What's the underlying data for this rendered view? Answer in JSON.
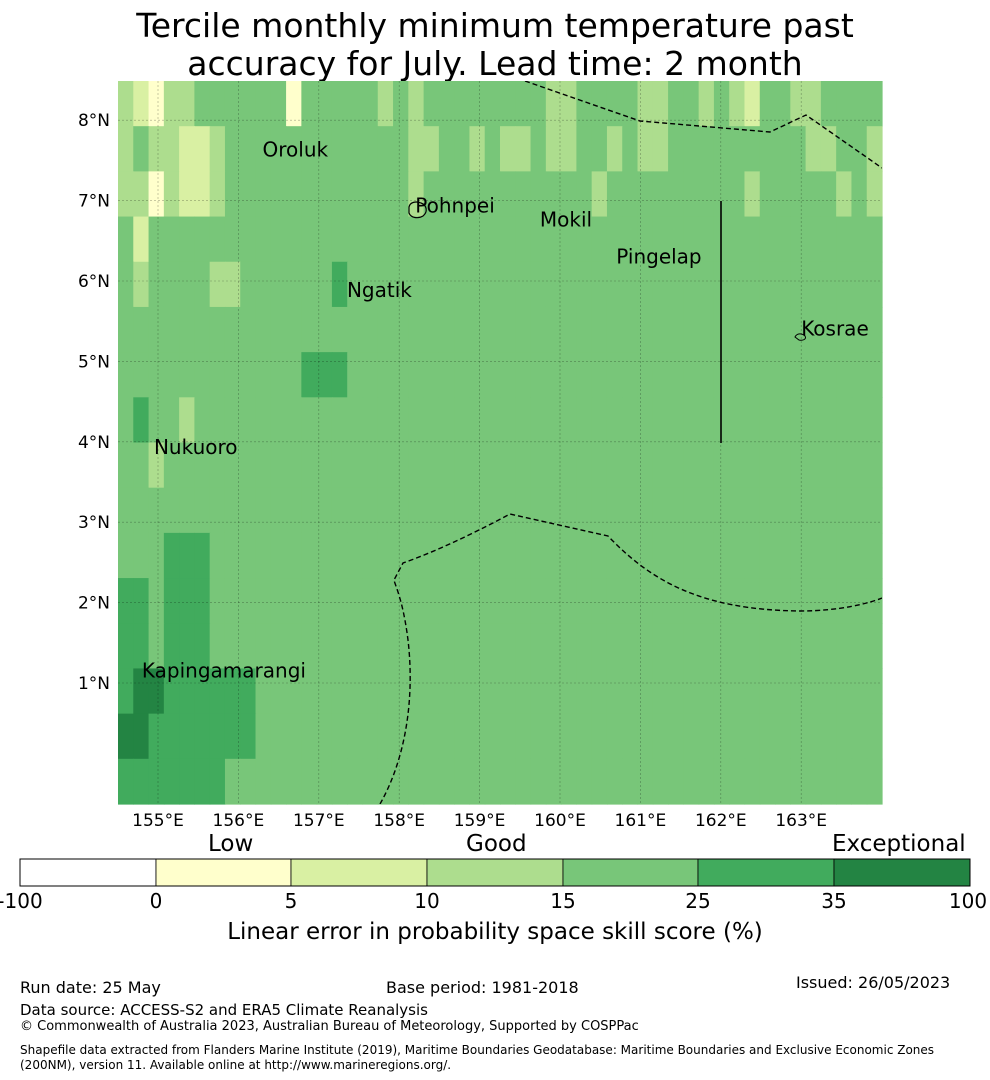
{
  "title": {
    "line1": "Tercile monthly minimum temperature past",
    "line2": "accuracy for July. Lead time: 2 month"
  },
  "map": {
    "lon_min": 154.5,
    "lon_max": 164.0,
    "lat_min": -0.3,
    "lat_max": 8.5,
    "cell_size_deg": 0.5556,
    "lon_ticks": [
      "155°E",
      "156°E",
      "157°E",
      "158°E",
      "159°E",
      "160°E",
      "161°E",
      "162°E",
      "163°E"
    ],
    "lat_ticks": [
      "1°N",
      "2°N",
      "3°N",
      "4°N",
      "5°N",
      "6°N",
      "7°N",
      "8°N"
    ],
    "places": [
      {
        "name": "Oroluk",
        "lon": 156.3,
        "lat": 7.55
      },
      {
        "name": "Pohnpei",
        "lon": 158.2,
        "lat": 6.85
      },
      {
        "name": "Mokil",
        "lon": 159.75,
        "lat": 6.68
      },
      {
        "name": "Pingelap",
        "lon": 160.7,
        "lat": 6.22
      },
      {
        "name": "Ngatik",
        "lon": 157.35,
        "lat": 5.8
      },
      {
        "name": "Kosrae",
        "lon": 163.0,
        "lat": 5.32
      },
      {
        "name": "Nukuoro",
        "lon": 154.95,
        "lat": 3.85
      },
      {
        "name": "Kapingamarangi",
        "lon": 154.8,
        "lat": 1.07
      }
    ],
    "grid_skill_category": [
      [
        3,
        2,
        1,
        3,
        3,
        4,
        4,
        4,
        4,
        4,
        4,
        1,
        4,
        4,
        4,
        4,
        4,
        3,
        4,
        3,
        4,
        4,
        4,
        4,
        4,
        4,
        4,
        4,
        3,
        3,
        4,
        4,
        4,
        4,
        3,
        3,
        4,
        4,
        3,
        4,
        3,
        2,
        4,
        4,
        3,
        3,
        4,
        4,
        4,
        4
      ],
      [
        3,
        4,
        3,
        3,
        2,
        2,
        3,
        4,
        4,
        4,
        4,
        4,
        4,
        4,
        4,
        4,
        4,
        4,
        4,
        3,
        3,
        4,
        4,
        3,
        4,
        3,
        3,
        4,
        3,
        3,
        4,
        4,
        3,
        4,
        3,
        3,
        4,
        4,
        4,
        4,
        4,
        4,
        4,
        4,
        4,
        3,
        3,
        4,
        4,
        3
      ],
      [
        3,
        3,
        1,
        3,
        2,
        2,
        3,
        4,
        4,
        4,
        4,
        4,
        4,
        4,
        4,
        4,
        4,
        4,
        4,
        3,
        4,
        4,
        4,
        4,
        4,
        4,
        4,
        4,
        4,
        4,
        4,
        3,
        4,
        4,
        4,
        4,
        4,
        4,
        4,
        4,
        4,
        3,
        4,
        4,
        4,
        4,
        4,
        3,
        4,
        3
      ],
      [
        4,
        2,
        4,
        4,
        4,
        4,
        4,
        4,
        4,
        4,
        4,
        4,
        4,
        4,
        4,
        4,
        4,
        4,
        4,
        4,
        4,
        4,
        4,
        4,
        4,
        4,
        4,
        4,
        4,
        4,
        4,
        4,
        4,
        4,
        4,
        4,
        4,
        4,
        4,
        4,
        4,
        4,
        4,
        4,
        4,
        4,
        4,
        4,
        4,
        4
      ],
      [
        4,
        3,
        4,
        4,
        4,
        4,
        3,
        3,
        4,
        4,
        4,
        4,
        4,
        4,
        5,
        4,
        4,
        4,
        4,
        4,
        4,
        4,
        4,
        4,
        4,
        4,
        4,
        4,
        4,
        4,
        4,
        4,
        4,
        4,
        4,
        4,
        4,
        4,
        4,
        4,
        4,
        4,
        4,
        4,
        4,
        4,
        4,
        4,
        4,
        4
      ],
      [
        4,
        4,
        4,
        4,
        4,
        4,
        4,
        4,
        4,
        4,
        4,
        4,
        4,
        4,
        4,
        4,
        4,
        4,
        4,
        4,
        4,
        4,
        4,
        4,
        4,
        4,
        4,
        4,
        4,
        4,
        4,
        4,
        4,
        4,
        4,
        4,
        4,
        4,
        4,
        4,
        4,
        4,
        4,
        4,
        4,
        4,
        4,
        4,
        4,
        4
      ],
      [
        4,
        4,
        4,
        4,
        4,
        4,
        4,
        4,
        4,
        4,
        4,
        4,
        5,
        5,
        5,
        4,
        4,
        4,
        4,
        4,
        4,
        4,
        4,
        4,
        4,
        4,
        4,
        4,
        4,
        4,
        4,
        4,
        4,
        4,
        4,
        4,
        4,
        4,
        4,
        4,
        4,
        4,
        4,
        4,
        4,
        4,
        4,
        4,
        4,
        4
      ],
      [
        4,
        5,
        4,
        4,
        3,
        4,
        4,
        4,
        4,
        4,
        4,
        4,
        4,
        4,
        4,
        4,
        4,
        4,
        4,
        4,
        4,
        4,
        4,
        4,
        4,
        4,
        4,
        4,
        4,
        4,
        4,
        4,
        4,
        4,
        4,
        4,
        4,
        4,
        4,
        4,
        4,
        4,
        4,
        4,
        4,
        4,
        4,
        4,
        4,
        4
      ],
      [
        4,
        4,
        3,
        4,
        4,
        4,
        4,
        4,
        4,
        4,
        4,
        4,
        4,
        4,
        4,
        4,
        4,
        4,
        4,
        4,
        4,
        4,
        4,
        4,
        4,
        4,
        4,
        4,
        4,
        4,
        4,
        4,
        4,
        4,
        4,
        4,
        4,
        4,
        4,
        4,
        4,
        4,
        4,
        4,
        4,
        4,
        4,
        4,
        4,
        4
      ],
      [
        4,
        4,
        4,
        4,
        4,
        4,
        4,
        4,
        4,
        4,
        4,
        4,
        4,
        4,
        4,
        4,
        4,
        4,
        4,
        4,
        4,
        4,
        4,
        4,
        4,
        4,
        4,
        4,
        4,
        4,
        4,
        4,
        4,
        4,
        4,
        4,
        4,
        4,
        4,
        4,
        4,
        4,
        4,
        4,
        4,
        4,
        4,
        4,
        4,
        4
      ],
      [
        4,
        4,
        4,
        5,
        5,
        5,
        4,
        4,
        4,
        4,
        4,
        4,
        4,
        4,
        4,
        4,
        4,
        4,
        4,
        4,
        4,
        4,
        4,
        4,
        4,
        4,
        4,
        4,
        4,
        4,
        4,
        4,
        4,
        4,
        4,
        4,
        4,
        4,
        4,
        4,
        4,
        4,
        4,
        4,
        4,
        4,
        4,
        4,
        4,
        4
      ],
      [
        5,
        5,
        4,
        5,
        5,
        5,
        4,
        4,
        4,
        4,
        4,
        4,
        4,
        4,
        4,
        4,
        4,
        4,
        4,
        4,
        4,
        4,
        4,
        4,
        4,
        4,
        4,
        4,
        4,
        4,
        4,
        4,
        4,
        4,
        4,
        4,
        4,
        4,
        4,
        4,
        4,
        4,
        4,
        4,
        4,
        4,
        4,
        4,
        4,
        4
      ],
      [
        5,
        5,
        4,
        5,
        5,
        5,
        4,
        4,
        4,
        4,
        4,
        4,
        4,
        4,
        4,
        4,
        4,
        4,
        4,
        4,
        4,
        4,
        4,
        4,
        4,
        4,
        4,
        4,
        4,
        4,
        4,
        4,
        4,
        4,
        4,
        4,
        4,
        4,
        4,
        4,
        4,
        4,
        4,
        4,
        4,
        4,
        4,
        4,
        4,
        4
      ],
      [
        5,
        6,
        6,
        5,
        5,
        5,
        5,
        5,
        5,
        4,
        4,
        4,
        4,
        4,
        4,
        4,
        4,
        4,
        4,
        4,
        4,
        4,
        4,
        4,
        4,
        4,
        4,
        4,
        4,
        4,
        4,
        4,
        4,
        4,
        4,
        4,
        4,
        4,
        4,
        4,
        4,
        4,
        4,
        4,
        4,
        4,
        4,
        4,
        4,
        4
      ],
      [
        6,
        6,
        5,
        5,
        5,
        5,
        5,
        5,
        5,
        4,
        4,
        4,
        4,
        4,
        4,
        4,
        4,
        4,
        4,
        4,
        4,
        4,
        4,
        4,
        4,
        4,
        4,
        4,
        4,
        4,
        4,
        4,
        4,
        4,
        4,
        4,
        4,
        4,
        4,
        4,
        4,
        4,
        4,
        4,
        4,
        4,
        4,
        4,
        4,
        4
      ],
      [
        5,
        5,
        5,
        5,
        5,
        5,
        5,
        4,
        4,
        4,
        4,
        4,
        4,
        4,
        4,
        4,
        4,
        4,
        4,
        4,
        4,
        4,
        4,
        4,
        4,
        4,
        4,
        4,
        4,
        4,
        4,
        4,
        4,
        4,
        4,
        4,
        4,
        4,
        4,
        4,
        4,
        4,
        4,
        4,
        4,
        4,
        4,
        4,
        4,
        4
      ]
    ]
  },
  "colorbar": {
    "headers": [
      "Low",
      "Good",
      "Exceptional"
    ],
    "ticks": [
      "-100",
      "0",
      "5",
      "10",
      "15",
      "25",
      "35",
      "100"
    ],
    "colors": [
      "#ffffff",
      "#ffffcc",
      "#d9f0a3",
      "#addd8e",
      "#78c679",
      "#41ab5d",
      "#238443"
    ],
    "label": "Linear error in probability space skill score (%)"
  },
  "footer": {
    "run_date": "Run date: 25 May",
    "base_period": "Base period: 1981-2018",
    "issued": "Issued: 26/05/2023",
    "data_source": "Data source: ACCESS-S2 and ERA5 Climate Reanalysis",
    "copyright": "© Commonwealth of Australia 2023, Australian Bureau of Meteorology, Supported by COSPPac",
    "shapefile_line1": "Shapefile data extracted from Flanders Marine Institute (2019), Maritime Boundaries Geodatabase: Maritime Boundaries and Exclusive Economic Zones",
    "shapefile_line2": "(200NM), version 11. Available online at http://www.marineregions.org/."
  }
}
